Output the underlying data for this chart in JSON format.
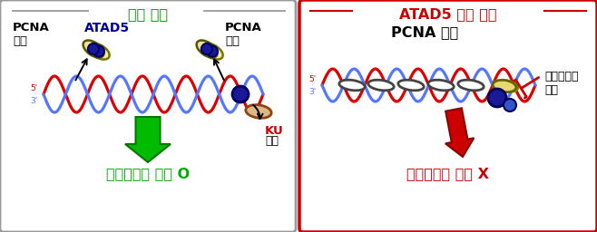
{
  "left_title": "정상 세포",
  "right_title": "ATAD5 결핍 세포",
  "left_bottom": "상동재조합 복구 O",
  "right_bottom": "상동재조합 복구 X",
  "left_pcna1": "PCNA\n분리",
  "left_atad5": "ATAD5",
  "left_pcna2": "PCNA\n분리",
  "ku_label": "KU\n제거",
  "right_pcna_label": "PCNA 축적",
  "right_block_label": "단거리절제\n방해",
  "bg": "#ffffff",
  "left_border": "#999999",
  "right_border": "#cc0000",
  "left_title_color": "#009900",
  "right_title_color": "#cc0000",
  "atad5_color": "#000099",
  "ku_color": "#cc0000",
  "black": "#000000",
  "green_arrow": "#00bb00",
  "red_arrow": "#cc0000",
  "left_bottom_color": "#00aa00",
  "right_bottom_color": "#cc0000",
  "dna_red": "#dd0000",
  "dna_blue": "#5577ff",
  "pcna_ball_color": "#1a1a99"
}
